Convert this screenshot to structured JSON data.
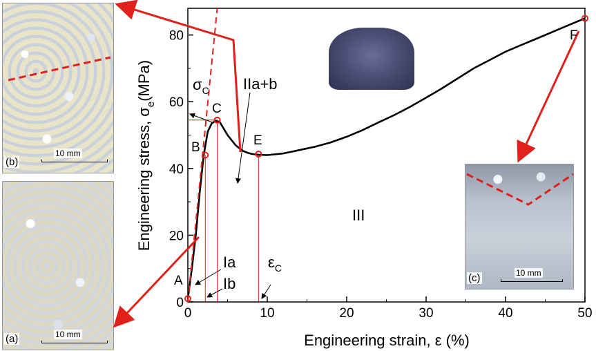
{
  "chart_data": {
    "type": "line",
    "xlabel": "Engineering strain, ε (%)",
    "ylabel": "Engineering stress, σ",
    "ylabel_subscript": "e",
    "ylabel_unit": "(MPa)",
    "xlim": [
      0,
      50
    ],
    "ylim": [
      0,
      88
    ],
    "x_ticks": [
      0,
      10,
      20,
      30,
      40,
      50
    ],
    "y_ticks": [
      0,
      20,
      40,
      60,
      80
    ],
    "grid": false,
    "series": [
      {
        "color": "#000000",
        "x": [
          0,
          0.5,
          1.0,
          1.5,
          2.0,
          2.5,
          3.0,
          3.5,
          4.0,
          4.5,
          5.0,
          5.5,
          6.0,
          6.5,
          7.0,
          7.5,
          8.0,
          8.5,
          9.0,
          10,
          12,
          14,
          16,
          18,
          20,
          22,
          24,
          26,
          28,
          30,
          32,
          34,
          36,
          38,
          40,
          42,
          44,
          46,
          48,
          49,
          50
        ],
        "y": [
          1,
          10,
          20,
          33,
          44,
          51,
          53.5,
          54.3,
          54,
          52,
          50,
          48.5,
          47,
          46,
          45.2,
          44.7,
          44.4,
          44.2,
          44.1,
          44,
          44.5,
          45.5,
          46.5,
          47.8,
          49.5,
          51.5,
          53.8,
          56,
          58.5,
          61.2,
          64,
          67,
          70,
          72.5,
          75,
          77,
          79,
          81,
          83,
          84,
          85
        ]
      }
    ],
    "points": [
      {
        "label": "A",
        "x": 0,
        "y": 1
      },
      {
        "label": "B",
        "x": 2.2,
        "y": 44
      },
      {
        "label": "C",
        "x": 3.7,
        "y": 54.5
      },
      {
        "label": "E",
        "x": 8.9,
        "y": 44.3
      },
      {
        "label": "F",
        "x": 50,
        "y": 85
      }
    ],
    "elastic_line": {
      "x": [
        0,
        3.7
      ],
      "y": [
        0,
        88
      ]
    },
    "annotations": {
      "sigma_c": "σ",
      "sigma_c_sub": "C",
      "eps_c": "ε",
      "eps_c_sub": "C",
      "region_IIab": "IIa+b",
      "region_III": "III",
      "region_Ia": "Ia",
      "region_Ib": "Ib"
    },
    "accent_color": "#e0201a"
  },
  "photos": {
    "b": {
      "label": "(b)",
      "scale": "10 mm"
    },
    "a": {
      "label": "(a)",
      "scale": "10 mm"
    },
    "c": {
      "label": "(c)",
      "scale": "10 mm"
    }
  }
}
